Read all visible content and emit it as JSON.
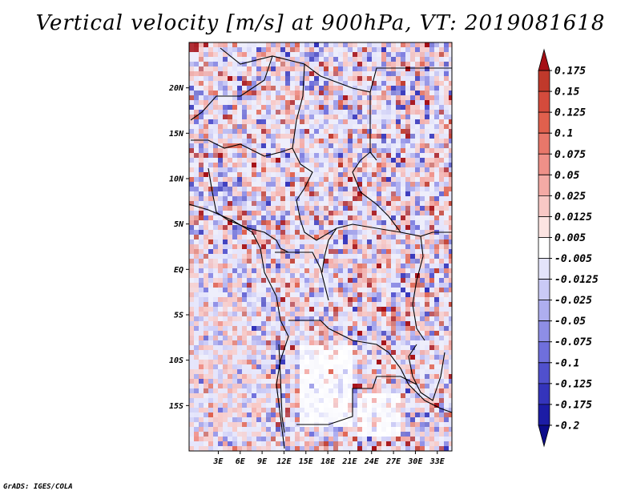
{
  "title": "Vertical velocity [m/s] at 900hPa, VT: 2019081618",
  "footer": "GrADS: IGES/COLA",
  "map": {
    "lon_range": [
      -1,
      35
    ],
    "lat_range": [
      -20,
      25
    ],
    "lon_ticks": [
      {
        "value": 3,
        "label": "3E"
      },
      {
        "value": 6,
        "label": "6E"
      },
      {
        "value": 9,
        "label": "9E"
      },
      {
        "value": 12,
        "label": "12E"
      },
      {
        "value": 15,
        "label": "15E"
      },
      {
        "value": 18,
        "label": "18E"
      },
      {
        "value": 21,
        "label": "21E"
      },
      {
        "value": 24,
        "label": "24E"
      },
      {
        "value": 27,
        "label": "27E"
      },
      {
        "value": 30,
        "label": "30E"
      },
      {
        "value": 33,
        "label": "33E"
      }
    ],
    "lat_ticks": [
      {
        "value": 20,
        "label": "20N"
      },
      {
        "value": 15,
        "label": "15N"
      },
      {
        "value": 10,
        "label": "10N"
      },
      {
        "value": 5,
        "label": "5N"
      },
      {
        "value": 0,
        "label": "EQ"
      },
      {
        "value": -5,
        "label": "5S"
      },
      {
        "value": -10,
        "label": "10S"
      },
      {
        "value": -15,
        "label": "15S"
      }
    ]
  },
  "colorbar": {
    "labels": [
      "0.175",
      "0.15",
      "0.125",
      "0.1",
      "0.075",
      "0.05",
      "0.025",
      "0.0125",
      "0.005",
      "-0.005",
      "-0.0125",
      "-0.025",
      "-0.05",
      "-0.075",
      "-0.1",
      "-0.125",
      "-0.175",
      "-0.2"
    ],
    "colors": [
      "#a50f15",
      "#c0392b",
      "#d44b3c",
      "#e0604d",
      "#e8776a",
      "#ef9088",
      "#f4aaa5",
      "#f8c8c5",
      "#fce4e2",
      "#ffffff",
      "#e4e4fb",
      "#cacaf6",
      "#aeaeef",
      "#8e8ee6",
      "#6f6fdc",
      "#5050cd",
      "#3434bb",
      "#1c1ca5",
      "#0c0c8a"
    ]
  }
}
